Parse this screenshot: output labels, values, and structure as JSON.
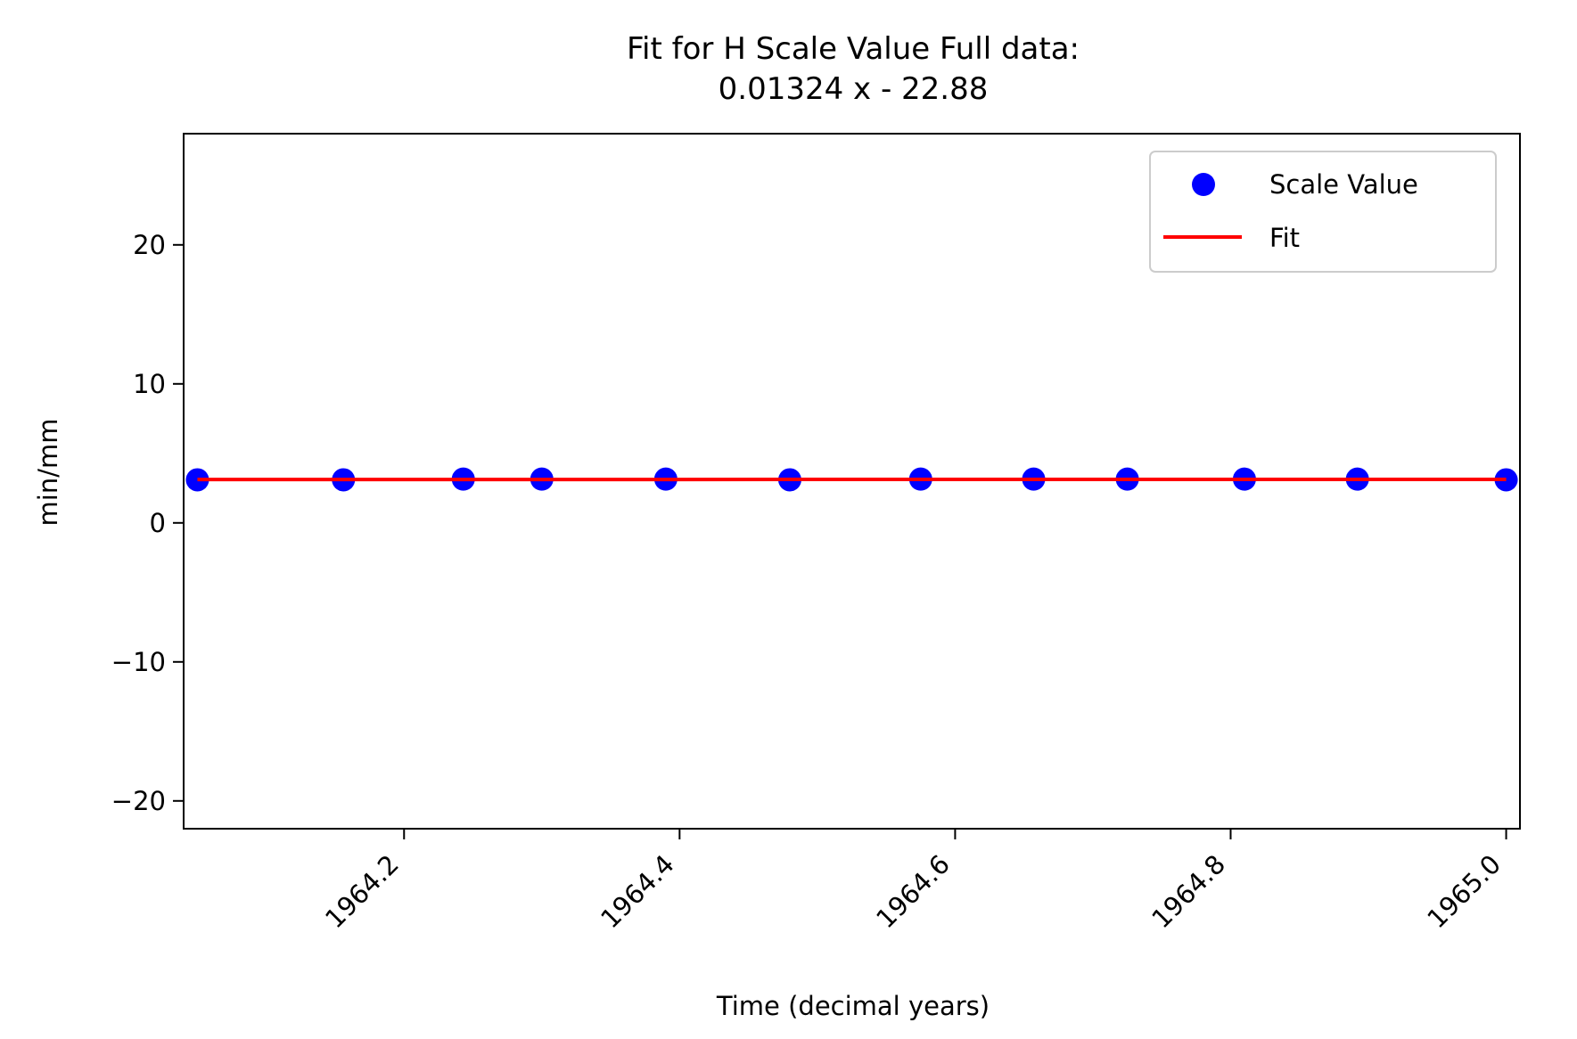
{
  "chart_data": {
    "type": "scatter",
    "title": "Fit for H Scale Value Full data:",
    "subtitle": "0.01324 x - 22.88",
    "xlabel": "Time (decimal years)",
    "ylabel": "min/mm",
    "xlim": [
      1964.04,
      1965.01
    ],
    "ylim": [
      -22,
      28
    ],
    "x_ticks": [
      1964.2,
      1964.4,
      1964.6,
      1964.8,
      1965.0
    ],
    "x_tick_labels": [
      "1964.2",
      "1964.4",
      "1964.6",
      "1964.8",
      "1965.0"
    ],
    "y_ticks": [
      -20,
      -10,
      0,
      10,
      20
    ],
    "y_tick_labels": [
      "−20",
      "−10",
      "0",
      "10",
      "20"
    ],
    "grid": false,
    "legend_position": "top-right",
    "series": [
      {
        "name": "Scale Value",
        "kind": "points",
        "color": "#0000ff",
        "x": [
          1964.05,
          1964.156,
          1964.243,
          1964.3,
          1964.39,
          1964.48,
          1964.575,
          1964.657,
          1964.725,
          1964.81,
          1964.892,
          1965.0
        ],
        "y": [
          3.1,
          3.1,
          3.15,
          3.15,
          3.15,
          3.1,
          3.15,
          3.15,
          3.15,
          3.15,
          3.15,
          3.1
        ]
      },
      {
        "name": "Fit",
        "kind": "line",
        "color": "#ff0000",
        "x": [
          1964.05,
          1965.0
        ],
        "y": [
          3.12,
          3.13
        ]
      }
    ]
  }
}
